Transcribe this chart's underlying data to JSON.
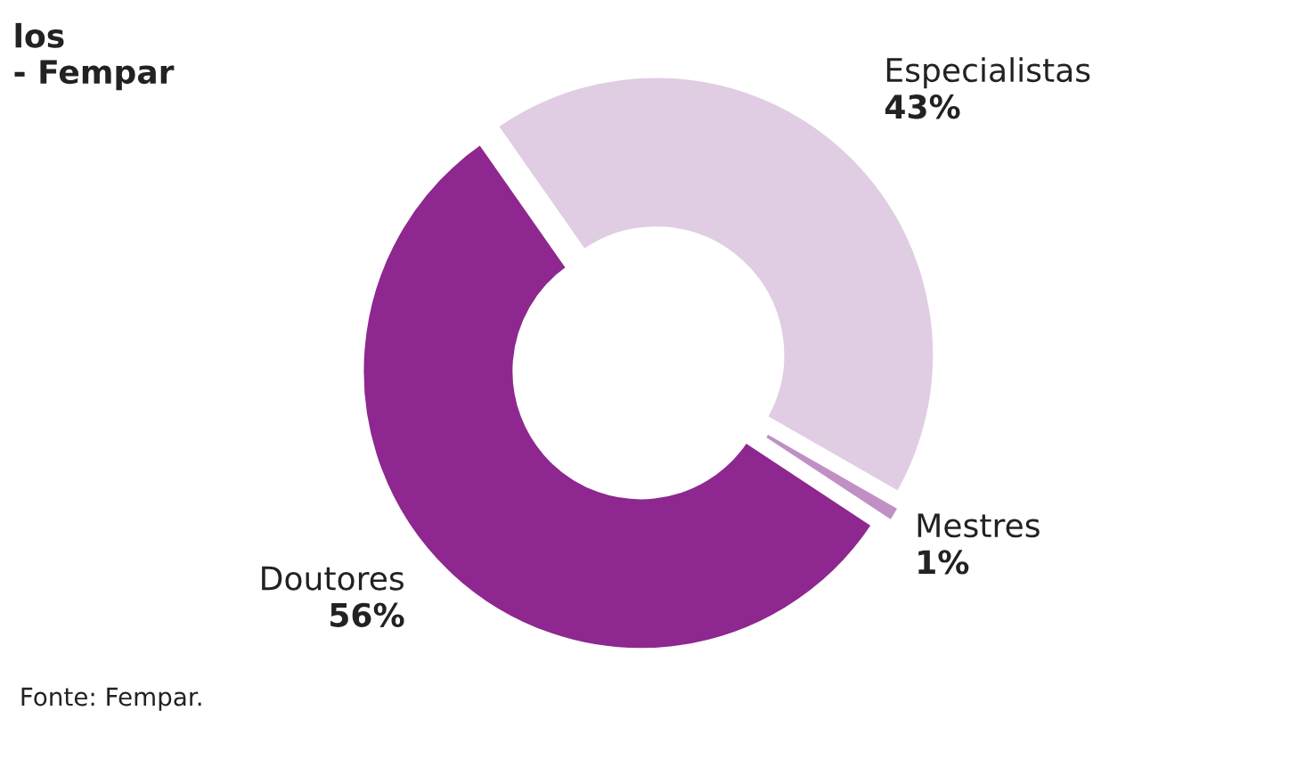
{
  "chart_data": {
    "type": "donut",
    "title": "los\n- Fempar",
    "categories": [
      "Especialistas",
      "Mestres",
      "Doutores"
    ],
    "values": [
      43,
      1,
      56
    ],
    "colors": [
      "#e0cce3",
      "#c090c4",
      "#8e278f"
    ],
    "value_labels": [
      "43%",
      "1%",
      "56%"
    ],
    "legend": false,
    "annotations": [
      "Fonte: Fempar."
    ]
  }
}
